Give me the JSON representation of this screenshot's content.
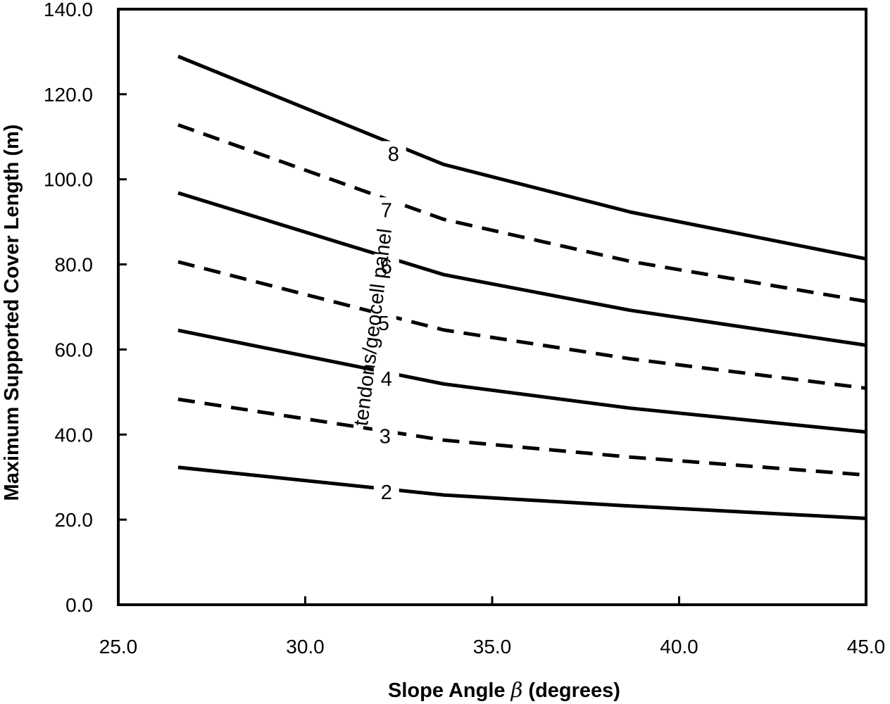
{
  "chart_data": {
    "type": "line",
    "xlabel_prefix": "Slope Angle ",
    "xlabel_symbol": "β",
    "xlabel_suffix": " (degrees)",
    "ylabel": "Maximum Supported Cover Length (m)",
    "xlim": [
      25.0,
      45.0
    ],
    "ylim": [
      0.0,
      140.0
    ],
    "xticks": [
      "25.0",
      "30.0",
      "35.0",
      "40.0",
      "45.0"
    ],
    "xtick_values": [
      25,
      30,
      35,
      40,
      45
    ],
    "yticks": [
      "0.0",
      "20.0",
      "40.0",
      "60.0",
      "80.0",
      "100.0",
      "120.0",
      "140.0"
    ],
    "ytick_values": [
      0,
      20,
      40,
      60,
      80,
      100,
      120,
      140
    ],
    "grid": false,
    "annotation": "tendons/geocell panel",
    "x": [
      26.6,
      33.7,
      38.7,
      45.0
    ],
    "series": [
      {
        "name": "2",
        "dashed": false,
        "values": [
          32.3,
          25.8,
          23.2,
          20.3
        ]
      },
      {
        "name": "3",
        "dashed": true,
        "values": [
          48.3,
          38.7,
          34.7,
          30.5
        ]
      },
      {
        "name": "4",
        "dashed": false,
        "values": [
          64.5,
          51.9,
          46.2,
          40.6
        ]
      },
      {
        "name": "5",
        "dashed": true,
        "values": [
          80.6,
          64.6,
          57.8,
          50.9
        ]
      },
      {
        "name": "6",
        "dashed": false,
        "values": [
          96.8,
          77.6,
          69.2,
          61.0
        ]
      },
      {
        "name": "7",
        "dashed": true,
        "values": [
          112.8,
          90.6,
          80.7,
          71.3
        ]
      },
      {
        "name": "8",
        "dashed": false,
        "values": [
          128.9,
          103.5,
          92.3,
          81.3
        ]
      }
    ]
  }
}
